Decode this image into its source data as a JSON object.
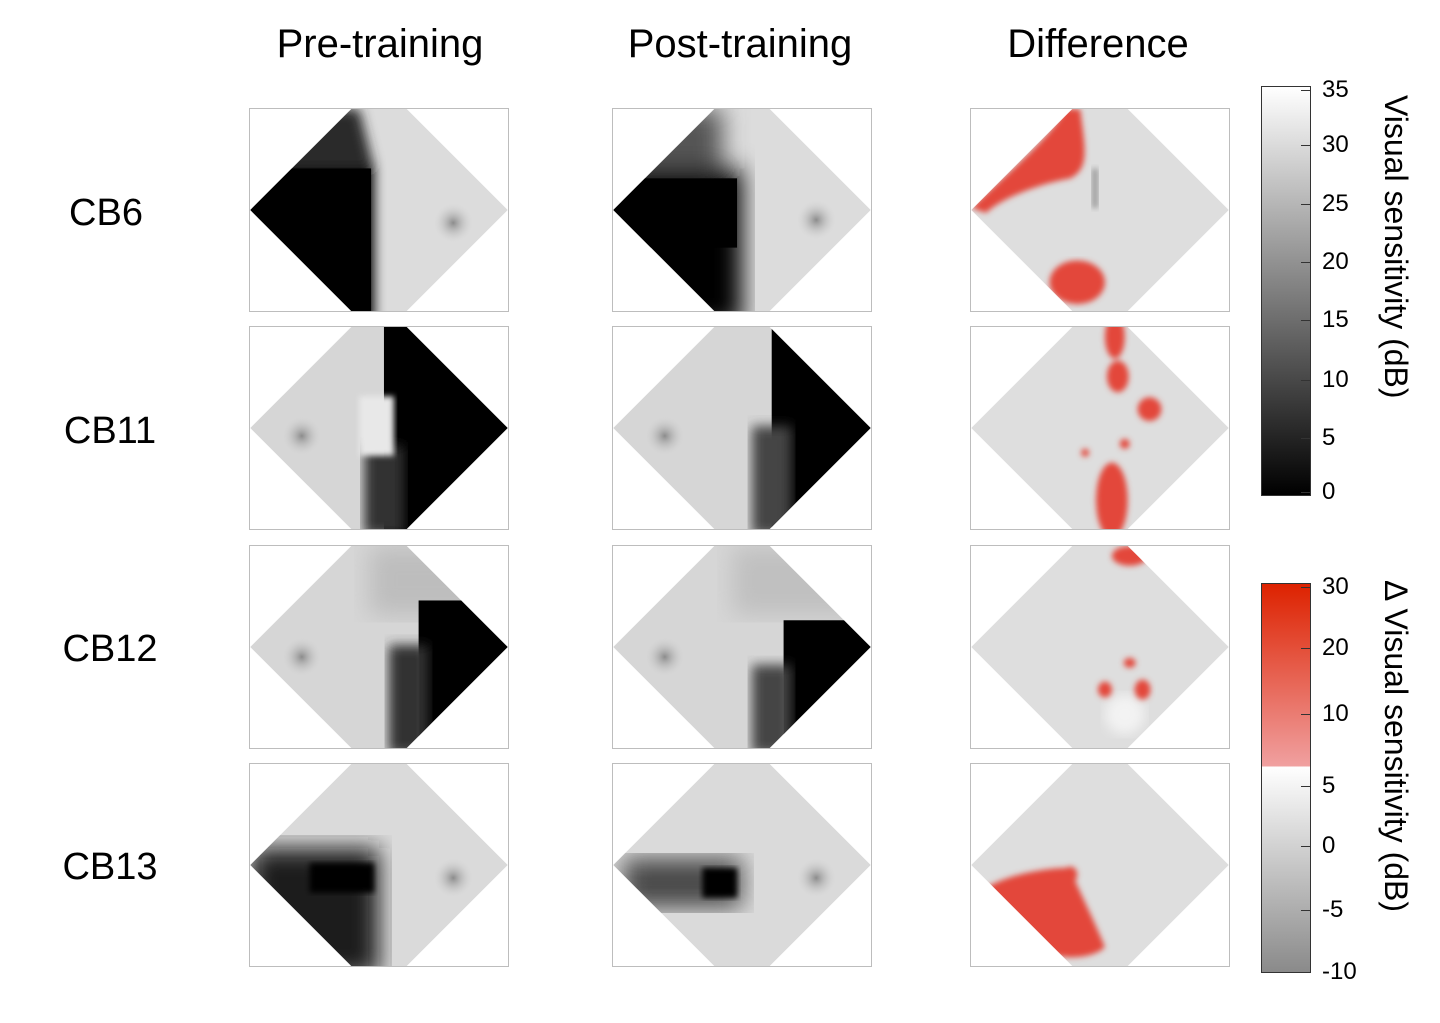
{
  "columns": [
    "Pre-training",
    "Post-training",
    "Difference"
  ],
  "rows": [
    "CB6",
    "CB11",
    "CB12",
    "CB13"
  ],
  "colorbar_sensitivity": {
    "label": "Visual sensitivity (dB)",
    "ticks": [
      "35",
      "30",
      "25",
      "20",
      "15",
      "10",
      "5",
      "0"
    ]
  },
  "colorbar_difference": {
    "label": "Δ Visual sensitivity (dB)",
    "ticks": [
      "30",
      "20",
      "10",
      "5",
      "0",
      "-5",
      "-10"
    ],
    "colors": {
      "red_high": "#dd2200",
      "red_low": "#f0a0a0",
      "gray_high": "#ffffff",
      "gray_low": "#8a8a8a"
    }
  }
}
